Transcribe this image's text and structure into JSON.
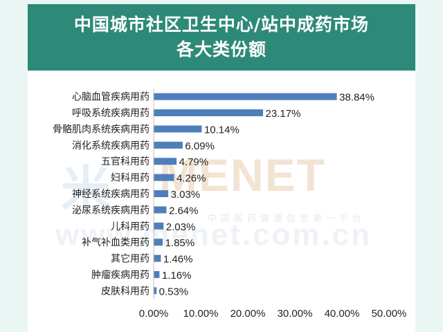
{
  "title": {
    "line1": "中国城市社区卫生中心/站中成药市场",
    "line2": "各大类份额"
  },
  "watermark": {
    "logo": "米",
    "main": "MENET",
    "subtitle": "中国医药健康信息第一平台",
    "url": "www.menet.com.cn"
  },
  "colors": {
    "banner": "#2e8a78",
    "bar": "#4f7fba",
    "background": "#e9f6f3"
  },
  "chart_data": {
    "type": "bar",
    "orientation": "horizontal",
    "title": "中国城市社区卫生中心/站中成药市场各大类份额",
    "categories": [
      "心脑血管疾病用药",
      "呼吸系统疾病用药",
      "骨骼肌肉系统疾病用药",
      "消化系统疾病用药",
      "五官科用药",
      "妇科用药",
      "神经系统疾病用药",
      "泌尿系统疾病用药",
      "儿科用药",
      "补气补血类用药",
      "其它用药",
      "肿瘤疾病用药",
      "皮肤科用药"
    ],
    "values": [
      38.84,
      23.17,
      10.14,
      6.09,
      4.79,
      4.26,
      3.03,
      2.64,
      2.03,
      1.85,
      1.46,
      1.16,
      0.53
    ],
    "value_labels": [
      "38.84%",
      "23.17%",
      "10.14%",
      "6.09%",
      "4.79%",
      "4.26%",
      "3.03%",
      "2.64%",
      "2.03%",
      "1.85%",
      "1.46%",
      "1.16%",
      "0.53%"
    ],
    "xlim": [
      0,
      50
    ],
    "xticks": [
      0,
      10,
      20,
      30,
      40,
      50
    ],
    "xtick_labels": [
      "0.00%",
      "10.00%",
      "20.00%",
      "30.00%",
      "40.00%",
      "50.00%"
    ],
    "xlabel": "",
    "ylabel": "",
    "grid": false,
    "legend": "none"
  }
}
